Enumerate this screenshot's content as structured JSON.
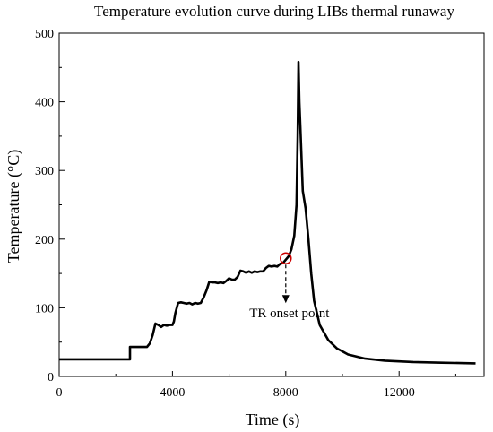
{
  "chart_data": {
    "type": "line",
    "title": "Temperature evolution curve during LIBs  thermal runaway",
    "xlabel": "Time (s)",
    "ylabel": "Temperature (°C)",
    "xlim": [
      0,
      15000
    ],
    "ylim": [
      0,
      500
    ],
    "xticks": [
      0,
      4000,
      8000,
      12000
    ],
    "yticks": [
      0,
      100,
      200,
      300,
      400,
      500
    ],
    "grid": false,
    "series": [
      {
        "color": "#000000",
        "x": [
          0,
          2500,
          2500,
          2550,
          3100,
          3200,
          3300,
          3400,
          3500,
          3600,
          3700,
          3800,
          3900,
          4000,
          4050,
          4100,
          4200,
          4300,
          4400,
          4500,
          4600,
          4700,
          4800,
          4900,
          5000,
          5100,
          5200,
          5300,
          5400,
          5500,
          5600,
          5700,
          5800,
          5900,
          6000,
          6100,
          6200,
          6300,
          6400,
          6500,
          6600,
          6700,
          6800,
          6900,
          7000,
          7100,
          7200,
          7300,
          7400,
          7500,
          7600,
          7700,
          7800,
          7900,
          8000,
          8100,
          8200,
          8300,
          8380,
          8420,
          8450,
          8480,
          8520,
          8600,
          8700,
          8800,
          8900,
          9000,
          9200,
          9500,
          9800,
          10200,
          10800,
          11500,
          12500,
          13500,
          14700
        ],
        "y": [
          25,
          25,
          43,
          43,
          43,
          48,
          60,
          77,
          75,
          72,
          75,
          74,
          75,
          75,
          80,
          92,
          107,
          108,
          107,
          106,
          107,
          105,
          107,
          106,
          107,
          115,
          125,
          138,
          137,
          137,
          136,
          137,
          136,
          139,
          143,
          141,
          141,
          145,
          154,
          153,
          151,
          153,
          151,
          153,
          152,
          153,
          153,
          158,
          161,
          160,
          161,
          160,
          164,
          165,
          170,
          175,
          185,
          205,
          250,
          350,
          458,
          400,
          360,
          270,
          245,
          200,
          150,
          110,
          75,
          53,
          41,
          32,
          26,
          23,
          21,
          20,
          19
        ]
      }
    ],
    "annotations": [
      {
        "text": "TR onset point",
        "marker_x": 8000,
        "marker_y": 172,
        "marker_color": "#cc0000"
      }
    ]
  }
}
